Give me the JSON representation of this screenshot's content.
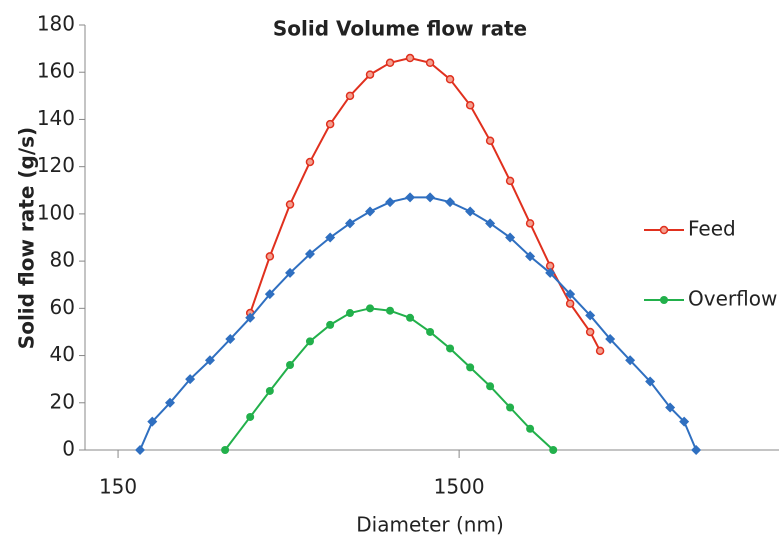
{
  "chart_data": {
    "type": "line",
    "title": "Solid Volume flow rate",
    "x_label": "Diameter (nm)",
    "y_label": "Solid flow rate (g/s)",
    "xscale": "log",
    "xlim": [
      120,
      13000
    ],
    "xticks": [
      150,
      1500
    ],
    "ylim": [
      0,
      180
    ],
    "yticks": [
      0,
      20,
      40,
      60,
      80,
      100,
      120,
      140,
      160,
      180
    ],
    "legend": "right",
    "series": [
      {
        "name": "Feed",
        "color": "#e0301e",
        "marker": "open-circle",
        "x": [
          366,
          418,
          479,
          548,
          628,
          718,
          822,
          941,
          1077,
          1233,
          1411,
          1616,
          1849,
          2116,
          2422,
          2773,
          3174,
          3633,
          3885
        ],
        "values": [
          58,
          82,
          104,
          122,
          138,
          150,
          159,
          164,
          166,
          164,
          157,
          146,
          131,
          114,
          96,
          78,
          62,
          50,
          42
        ]
      },
      {
        "color": "#2f6fc0",
        "marker": "diamond",
        "x": [
          174,
          189,
          213,
          244,
          279,
          320,
          366,
          418,
          479,
          548,
          628,
          718,
          822,
          941,
          1077,
          1233,
          1411,
          1616,
          1849,
          2116,
          2422,
          2773,
          3174,
          3633,
          4158,
          4758,
          5446,
          6234,
          6853,
          7430
        ],
        "values": [
          0,
          12,
          20,
          30,
          38,
          47,
          56,
          66,
          75,
          83,
          90,
          96,
          101,
          105,
          107,
          107,
          105,
          101,
          96,
          90,
          82,
          75,
          66,
          57,
          47,
          38,
          29,
          18,
          12,
          0
        ]
      },
      {
        "name": "Overflow",
        "color": "#22b04b",
        "marker": "dot",
        "x": [
          309,
          366,
          418,
          479,
          548,
          628,
          718,
          822,
          941,
          1077,
          1233,
          1411,
          1616,
          1849,
          2116,
          2422,
          2831
        ],
        "values": [
          0,
          14,
          25,
          36,
          46,
          53,
          58,
          60,
          59,
          56,
          50,
          43,
          35,
          27,
          18,
          9,
          0
        ]
      }
    ]
  }
}
